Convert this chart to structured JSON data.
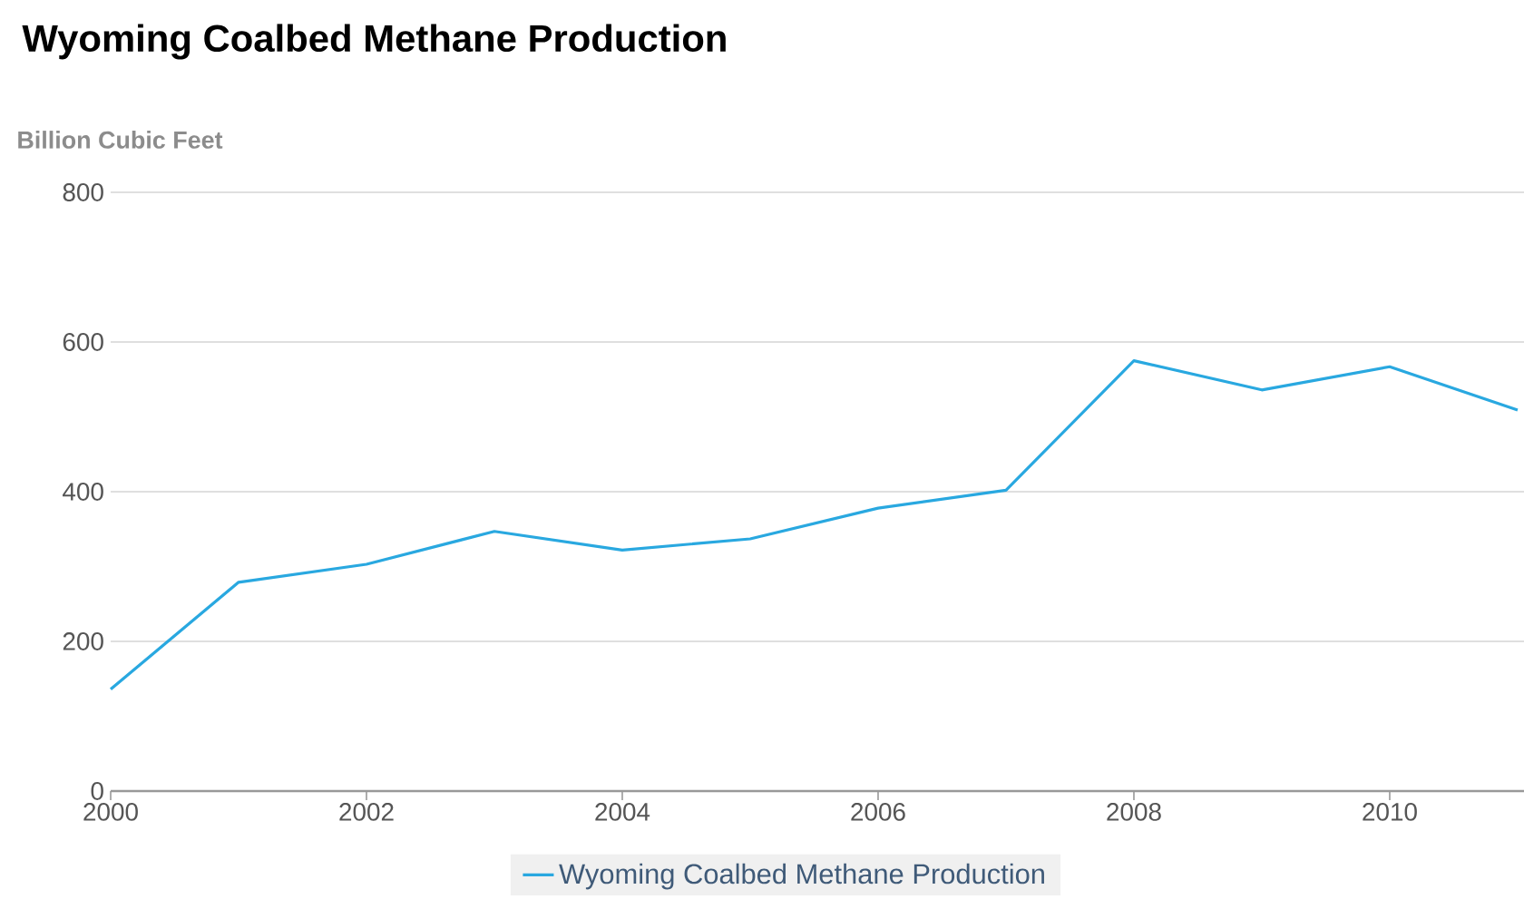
{
  "chart_data": {
    "type": "line",
    "title": "Wyoming Coalbed Methane Production",
    "ylabel": "Billion Cubic Feet",
    "x": [
      2000,
      2001,
      2002,
      2003,
      2004,
      2005,
      2006,
      2007,
      2008,
      2009,
      2010,
      2011
    ],
    "series": [
      {
        "name": "Wyoming Coalbed Methane Production",
        "color": "#29a8e0",
        "values": [
          136,
          279,
          303,
          347,
          322,
          337,
          378,
          402,
          575,
          536,
          567,
          509
        ]
      }
    ],
    "xlim": [
      2000,
      2011.05
    ],
    "xticks": [
      2000,
      2002,
      2004,
      2006,
      2008,
      2010
    ],
    "ylim": [
      0,
      800
    ],
    "yticks": [
      0,
      200,
      400,
      600,
      800
    ],
    "grid": "y",
    "legend": "bottom",
    "marker": "none",
    "line_style": "solid"
  }
}
